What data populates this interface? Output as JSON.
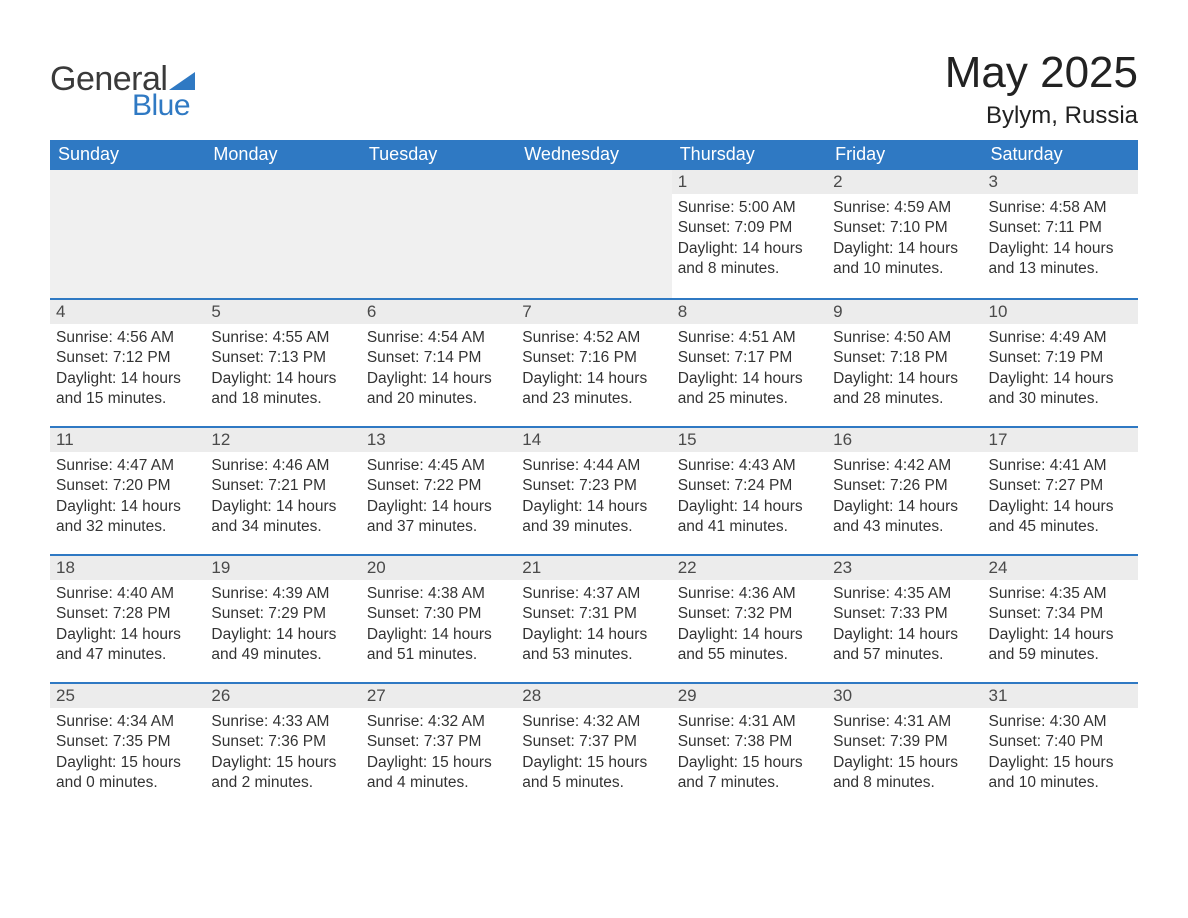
{
  "logo": {
    "general": "General",
    "blue": "Blue",
    "tri_color": "#2f79c3"
  },
  "title": {
    "month": "May 2025",
    "location": "Bylym, Russia"
  },
  "style": {
    "header_bg": "#2f79c3",
    "header_text": "#ffffff",
    "daybar_bg": "#ececec",
    "daybar_border": "#2f79c3",
    "body_text": "#333333",
    "blank_bg": "#f0f0f0"
  },
  "weekdays": [
    "Sunday",
    "Monday",
    "Tuesday",
    "Wednesday",
    "Thursday",
    "Friday",
    "Saturday"
  ],
  "weeks": [
    [
      null,
      null,
      null,
      null,
      {
        "n": "1",
        "sr": "5:00 AM",
        "ss": "7:09 PM",
        "dl": "14 hours and 8 minutes."
      },
      {
        "n": "2",
        "sr": "4:59 AM",
        "ss": "7:10 PM",
        "dl": "14 hours and 10 minutes."
      },
      {
        "n": "3",
        "sr": "4:58 AM",
        "ss": "7:11 PM",
        "dl": "14 hours and 13 minutes."
      }
    ],
    [
      {
        "n": "4",
        "sr": "4:56 AM",
        "ss": "7:12 PM",
        "dl": "14 hours and 15 minutes."
      },
      {
        "n": "5",
        "sr": "4:55 AM",
        "ss": "7:13 PM",
        "dl": "14 hours and 18 minutes."
      },
      {
        "n": "6",
        "sr": "4:54 AM",
        "ss": "7:14 PM",
        "dl": "14 hours and 20 minutes."
      },
      {
        "n": "7",
        "sr": "4:52 AM",
        "ss": "7:16 PM",
        "dl": "14 hours and 23 minutes."
      },
      {
        "n": "8",
        "sr": "4:51 AM",
        "ss": "7:17 PM",
        "dl": "14 hours and 25 minutes."
      },
      {
        "n": "9",
        "sr": "4:50 AM",
        "ss": "7:18 PM",
        "dl": "14 hours and 28 minutes."
      },
      {
        "n": "10",
        "sr": "4:49 AM",
        "ss": "7:19 PM",
        "dl": "14 hours and 30 minutes."
      }
    ],
    [
      {
        "n": "11",
        "sr": "4:47 AM",
        "ss": "7:20 PM",
        "dl": "14 hours and 32 minutes."
      },
      {
        "n": "12",
        "sr": "4:46 AM",
        "ss": "7:21 PM",
        "dl": "14 hours and 34 minutes."
      },
      {
        "n": "13",
        "sr": "4:45 AM",
        "ss": "7:22 PM",
        "dl": "14 hours and 37 minutes."
      },
      {
        "n": "14",
        "sr": "4:44 AM",
        "ss": "7:23 PM",
        "dl": "14 hours and 39 minutes."
      },
      {
        "n": "15",
        "sr": "4:43 AM",
        "ss": "7:24 PM",
        "dl": "14 hours and 41 minutes."
      },
      {
        "n": "16",
        "sr": "4:42 AM",
        "ss": "7:26 PM",
        "dl": "14 hours and 43 minutes."
      },
      {
        "n": "17",
        "sr": "4:41 AM",
        "ss": "7:27 PM",
        "dl": "14 hours and 45 minutes."
      }
    ],
    [
      {
        "n": "18",
        "sr": "4:40 AM",
        "ss": "7:28 PM",
        "dl": "14 hours and 47 minutes."
      },
      {
        "n": "19",
        "sr": "4:39 AM",
        "ss": "7:29 PM",
        "dl": "14 hours and 49 minutes."
      },
      {
        "n": "20",
        "sr": "4:38 AM",
        "ss": "7:30 PM",
        "dl": "14 hours and 51 minutes."
      },
      {
        "n": "21",
        "sr": "4:37 AM",
        "ss": "7:31 PM",
        "dl": "14 hours and 53 minutes."
      },
      {
        "n": "22",
        "sr": "4:36 AM",
        "ss": "7:32 PM",
        "dl": "14 hours and 55 minutes."
      },
      {
        "n": "23",
        "sr": "4:35 AM",
        "ss": "7:33 PM",
        "dl": "14 hours and 57 minutes."
      },
      {
        "n": "24",
        "sr": "4:35 AM",
        "ss": "7:34 PM",
        "dl": "14 hours and 59 minutes."
      }
    ],
    [
      {
        "n": "25",
        "sr": "4:34 AM",
        "ss": "7:35 PM",
        "dl": "15 hours and 0 minutes."
      },
      {
        "n": "26",
        "sr": "4:33 AM",
        "ss": "7:36 PM",
        "dl": "15 hours and 2 minutes."
      },
      {
        "n": "27",
        "sr": "4:32 AM",
        "ss": "7:37 PM",
        "dl": "15 hours and 4 minutes."
      },
      {
        "n": "28",
        "sr": "4:32 AM",
        "ss": "7:37 PM",
        "dl": "15 hours and 5 minutes."
      },
      {
        "n": "29",
        "sr": "4:31 AM",
        "ss": "7:38 PM",
        "dl": "15 hours and 7 minutes."
      },
      {
        "n": "30",
        "sr": "4:31 AM",
        "ss": "7:39 PM",
        "dl": "15 hours and 8 minutes."
      },
      {
        "n": "31",
        "sr": "4:30 AM",
        "ss": "7:40 PM",
        "dl": "15 hours and 10 minutes."
      }
    ]
  ],
  "labels": {
    "sunrise": "Sunrise:",
    "sunset": "Sunset:",
    "daylight": "Daylight:"
  }
}
